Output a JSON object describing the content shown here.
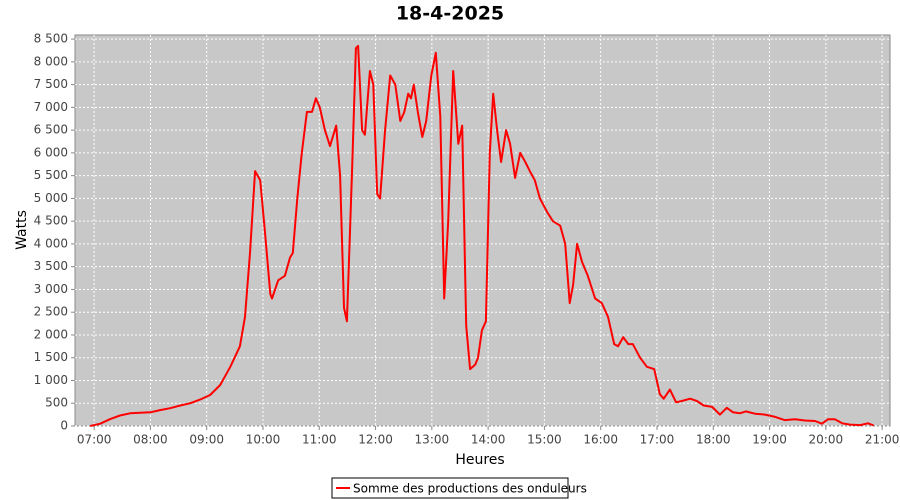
{
  "chart_data": {
    "type": "line",
    "title": "18-4-2025",
    "xlabel": "Heures",
    "ylabel": "Watts",
    "x": [
      6.93,
      7.11,
      7.28,
      7.46,
      7.64,
      7.82,
      8.0,
      8.17,
      8.35,
      8.53,
      8.71,
      8.88,
      9.06,
      9.24,
      9.42,
      9.59,
      9.68,
      9.77,
      9.86,
      9.95,
      10.04,
      10.13,
      10.16,
      10.27,
      10.39,
      10.48,
      10.53,
      10.61,
      10.69,
      10.78,
      10.87,
      10.94,
      11.01,
      11.1,
      11.19,
      11.3,
      11.37,
      11.44,
      11.49,
      11.58,
      11.65,
      11.69,
      11.76,
      11.81,
      11.9,
      11.96,
      12.03,
      12.08,
      12.17,
      12.26,
      12.35,
      12.44,
      12.51,
      12.58,
      12.63,
      12.68,
      12.75,
      12.83,
      12.9,
      12.99,
      13.07,
      13.15,
      13.22,
      13.29,
      13.38,
      13.47,
      13.54,
      13.61,
      13.68,
      13.77,
      13.82,
      13.89,
      13.96,
      14.03,
      14.09,
      14.16,
      14.23,
      14.32,
      14.39,
      14.48,
      14.57,
      14.66,
      14.74,
      14.83,
      14.92,
      15.05,
      15.15,
      15.28,
      15.37,
      15.45,
      15.51,
      15.58,
      15.67,
      15.77,
      15.9,
      16.02,
      16.13,
      16.24,
      16.31,
      16.4,
      16.49,
      16.57,
      16.7,
      16.82,
      16.95,
      17.05,
      17.12,
      17.23,
      17.34,
      17.44,
      17.59,
      17.71,
      17.83,
      17.98,
      18.12,
      18.24,
      18.35,
      18.47,
      18.58,
      18.74,
      18.92,
      19.1,
      19.27,
      19.45,
      19.63,
      19.81,
      19.93,
      20.04,
      20.16,
      20.29,
      20.43,
      20.61,
      20.75,
      20.85
    ],
    "series": [
      {
        "name": "Somme des productions des onduleurs",
        "color": "#ff0000",
        "values": [
          0,
          50,
          150,
          230,
          280,
          290,
          300,
          350,
          390,
          450,
          500,
          580,
          680,
          900,
          1300,
          1750,
          2400,
          3800,
          5600,
          5400,
          4200,
          2900,
          2800,
          3200,
          3300,
          3700,
          3800,
          5000,
          6000,
          6900,
          6900,
          7200,
          7000,
          6500,
          6150,
          6600,
          5500,
          2600,
          2300,
          5500,
          8300,
          8350,
          6500,
          6400,
          7800,
          7500,
          5100,
          5000,
          6500,
          7700,
          7500,
          6700,
          6900,
          7300,
          7200,
          7500,
          6900,
          6350,
          6700,
          7700,
          8200,
          6800,
          2800,
          4500,
          7800,
          6200,
          6600,
          2200,
          1250,
          1350,
          1500,
          2100,
          2300,
          6000,
          7300,
          6500,
          5800,
          6500,
          6200,
          5450,
          6000,
          5800,
          5600,
          5400,
          5000,
          4700,
          4500,
          4400,
          4000,
          2700,
          3100,
          4000,
          3600,
          3300,
          2800,
          2700,
          2400,
          1800,
          1750,
          1950,
          1800,
          1800,
          1500,
          1300,
          1250,
          700,
          600,
          800,
          520,
          550,
          600,
          550,
          450,
          420,
          250,
          400,
          300,
          280,
          320,
          270,
          250,
          200,
          130,
          150,
          120,
          110,
          50,
          150,
          150,
          60,
          30,
          20,
          60,
          10
        ]
      }
    ],
    "xlim": [
      6.66,
      21.14
    ],
    "xticks": [
      {
        "value": 7,
        "label": "07:00"
      },
      {
        "value": 8,
        "label": "08:00"
      },
      {
        "value": 9,
        "label": "09:00"
      },
      {
        "value": 10,
        "label": "10:00"
      },
      {
        "value": 11,
        "label": "11:00"
      },
      {
        "value": 12,
        "label": "12:00"
      },
      {
        "value": 13,
        "label": "13:00"
      },
      {
        "value": 14,
        "label": "14:00"
      },
      {
        "value": 15,
        "label": "15:00"
      },
      {
        "value": 16,
        "label": "16:00"
      },
      {
        "value": 17,
        "label": "17:00"
      },
      {
        "value": 18,
        "label": "18:00"
      },
      {
        "value": 19,
        "label": "19:00"
      },
      {
        "value": 20,
        "label": "20:00"
      },
      {
        "value": 21,
        "label": "21:00"
      }
    ],
    "ylim": [
      0,
      8590
    ],
    "yticks": [
      0,
      500,
      {
        "value": 1000,
        "label": "1 000"
      },
      {
        "value": 1500,
        "label": "1 500"
      },
      {
        "value": 2000,
        "label": "2 000"
      },
      {
        "value": 2500,
        "label": "2 500"
      },
      {
        "value": 3000,
        "label": "3 000"
      },
      {
        "value": 3500,
        "label": "3 500"
      },
      {
        "value": 4000,
        "label": "4 000"
      },
      {
        "value": 4500,
        "label": "4 500"
      },
      {
        "value": 5000,
        "label": "5 000"
      },
      {
        "value": 5500,
        "label": "5 500"
      },
      {
        "value": 6000,
        "label": "6 000"
      },
      {
        "value": 6500,
        "label": "6 500"
      },
      {
        "value": 7000,
        "label": "7 000"
      },
      {
        "value": 7500,
        "label": "7 500"
      },
      {
        "value": 8000,
        "label": "8 000"
      },
      {
        "value": 8500,
        "label": "8 500"
      }
    ],
    "grid": true
  }
}
